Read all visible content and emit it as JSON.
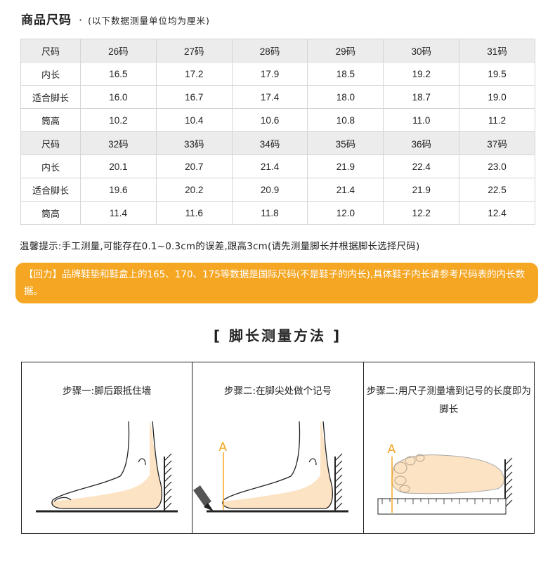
{
  "header": {
    "title": "商品尺码",
    "dot": "·",
    "subtitle": "(以下数据测量单位均为厘米)"
  },
  "size_table": {
    "rows": [
      [
        "尺码",
        "26码",
        "27码",
        "28码",
        "29码",
        "30码",
        "31码"
      ],
      [
        "内长",
        "16.5",
        "17.2",
        "17.9",
        "18.5",
        "19.2",
        "19.5"
      ],
      [
        "适合脚长",
        "16.0",
        "16.7",
        "17.4",
        "18.0",
        "18.7",
        "19.0"
      ],
      [
        "筒高",
        "10.2",
        "10.4",
        "10.6",
        "10.8",
        "11.0",
        "11.2"
      ],
      [
        "尺码",
        "32码",
        "33码",
        "34码",
        "35码",
        "36码",
        "37码"
      ],
      [
        "内长",
        "20.1",
        "20.7",
        "21.4",
        "21.9",
        "22.4",
        "23.0"
      ],
      [
        "适合脚长",
        "19.6",
        "20.2",
        "20.9",
        "21.4",
        "21.9",
        "22.5"
      ],
      [
        "筒高",
        "11.4",
        "11.6",
        "11.8",
        "12.0",
        "12.2",
        "12.4"
      ]
    ]
  },
  "tip": "温馨提示:手工测量,可能存在0.1~0.3cm的误差,跟高3cm(请先测量脚长并根据脚长选择尺码)",
  "notice": "【回力】品牌鞋垫和鞋盒上的165、170、175等数据是国际尺码(不是鞋子的内长),具体鞋子内长请参考尺码表的内长数据。",
  "method_title": "[ 脚长测量方法 ]",
  "steps": [
    {
      "caption": "步骤一:脚后跟抵住墙"
    },
    {
      "caption": "步骤二:在脚尖处做个记号",
      "marker": "A"
    },
    {
      "caption": "步骤二:用尺子测量墙到记号的长度即为脚长",
      "marker": "A"
    }
  ],
  "colors": {
    "accent": "#f5a623",
    "header_row": "#ececec",
    "foot_fill": "#fbe3c4",
    "marker": "#f5a623"
  }
}
